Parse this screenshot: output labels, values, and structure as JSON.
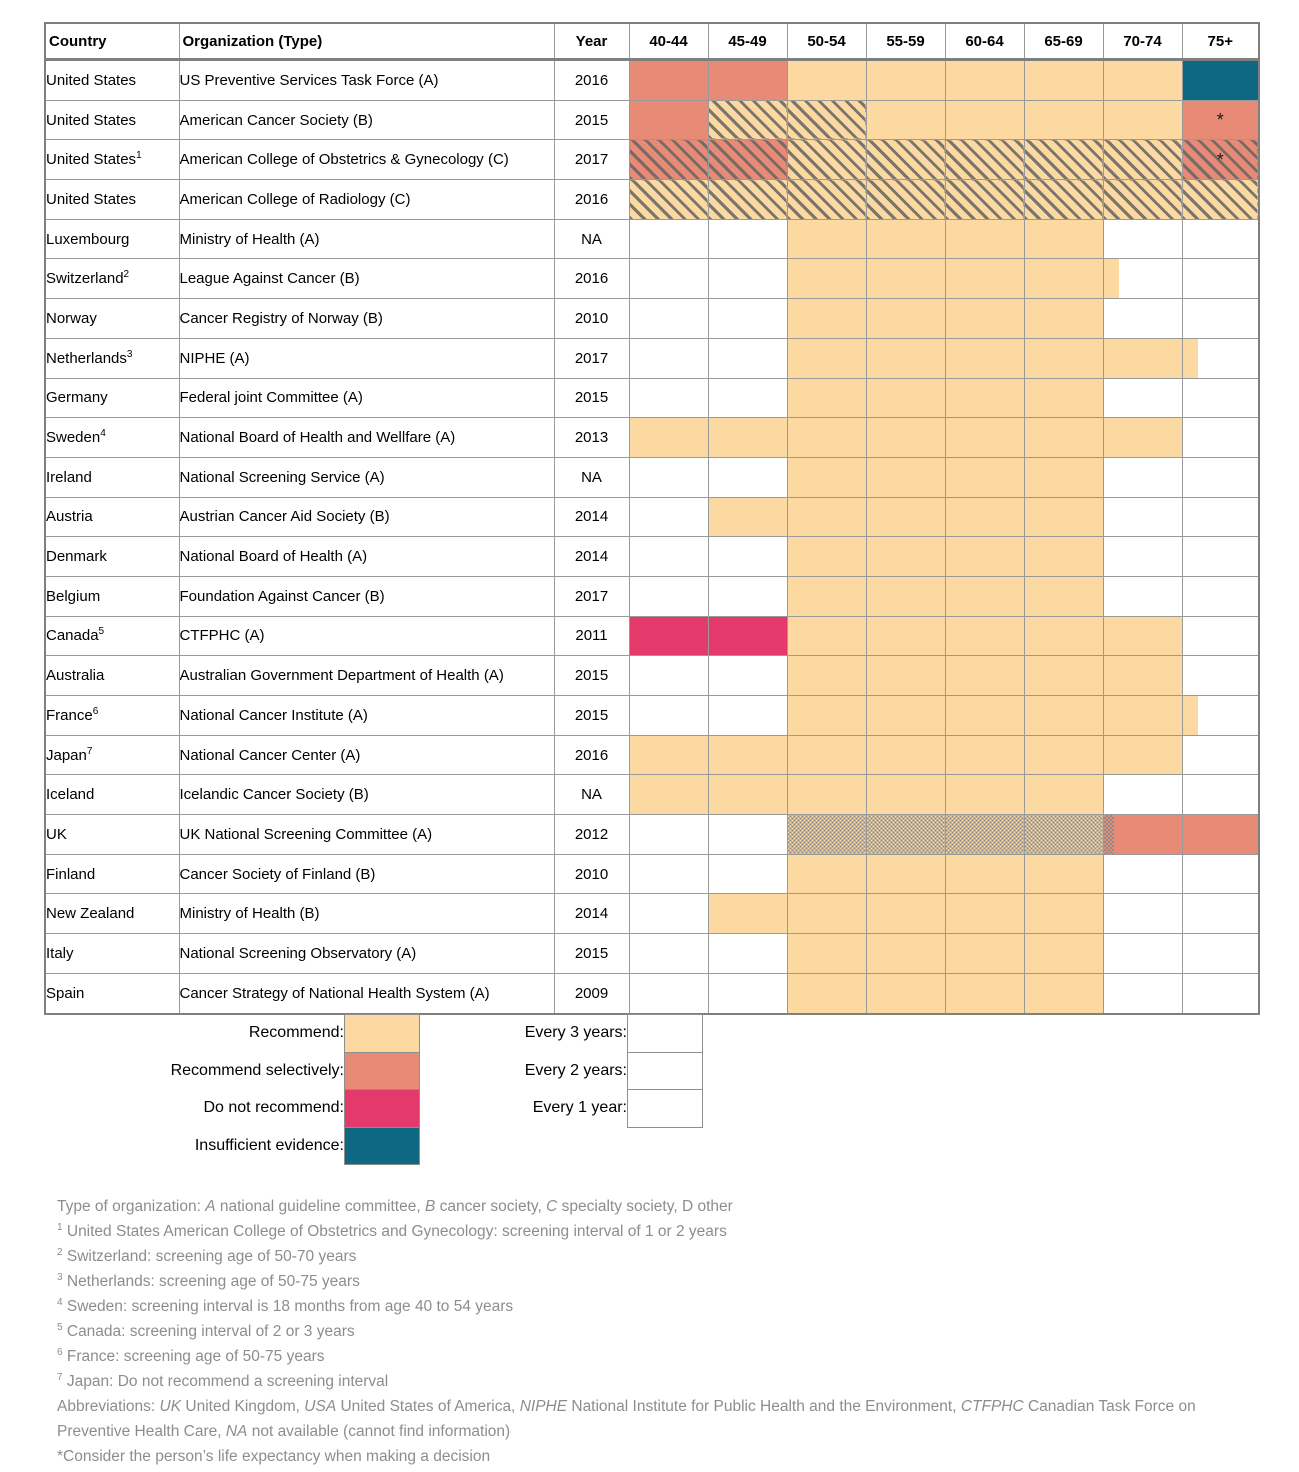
{
  "chart_data": {
    "type": "heatmap",
    "columns": [
      "Country",
      "Organization (Type)",
      "Year",
      "40-44",
      "45-49",
      "50-54",
      "55-59",
      "60-64",
      "65-69",
      "70-74",
      "75+"
    ],
    "age_groups": [
      "40-44",
      "45-49",
      "50-54",
      "55-59",
      "60-64",
      "65-69",
      "70-74",
      "75+"
    ],
    "cell_codes": {
      "R": "Recommend",
      "S": "Recommend selectively",
      "D": "Do not recommend",
      "I": "Insufficient evidence",
      "p1": "Every 1 year",
      "p2": "Every 2 years",
      "p3": "Every 3 years"
    },
    "rows": [
      {
        "country": "United States",
        "organization": "US Preventive Services Task Force (A)",
        "year": "2016",
        "cells": [
          {
            "c": "S"
          },
          {
            "c": "S"
          },
          {
            "c": "R"
          },
          {
            "c": "R"
          },
          {
            "c": "R"
          },
          {
            "c": "R"
          },
          {
            "c": "R"
          },
          {
            "c": "I"
          }
        ]
      },
      {
        "country": "United States",
        "organization": "American Cancer Society (B)",
        "year": "2015",
        "cells": [
          {
            "c": "S"
          },
          {
            "c": "R",
            "p": "1"
          },
          {
            "c": "R",
            "p": "1"
          },
          {
            "c": "R"
          },
          {
            "c": "R"
          },
          {
            "c": "R"
          },
          {
            "c": "R"
          },
          {
            "c": "S",
            "m": "*"
          }
        ]
      },
      {
        "country": "United States",
        "csup": "1",
        "organization": "American College of Obstetrics & Gynecology (C)",
        "year": "2017",
        "cells": [
          {
            "c": "S",
            "p": "1"
          },
          {
            "c": "S",
            "p": "1"
          },
          {
            "c": "R",
            "p": "1"
          },
          {
            "c": "R",
            "p": "1"
          },
          {
            "c": "R",
            "p": "1"
          },
          {
            "c": "R",
            "p": "1"
          },
          {
            "c": "R",
            "p": "1"
          },
          {
            "c": "S",
            "p": "1",
            "m": "*"
          }
        ]
      },
      {
        "country": "United States",
        "organization": "American College of Radiology (C)",
        "year": "2016",
        "cells": [
          {
            "c": "R",
            "p": "1"
          },
          {
            "c": "R",
            "p": "1"
          },
          {
            "c": "R",
            "p": "1"
          },
          {
            "c": "R",
            "p": "1"
          },
          {
            "c": "R",
            "p": "1"
          },
          {
            "c": "R",
            "p": "1"
          },
          {
            "c": "R",
            "p": "1"
          },
          {
            "c": "R",
            "p": "1"
          }
        ]
      },
      {
        "country": "Luxembourg",
        "organization": "Ministry of Health (A)",
        "year": "NA",
        "cells": [
          {},
          {},
          {
            "c": "R"
          },
          {
            "c": "R"
          },
          {
            "c": "R"
          },
          {
            "c": "R"
          },
          {},
          {}
        ]
      },
      {
        "country": "Switzerland",
        "csup": "2",
        "organization": "League Against Cancer (B)",
        "year": "2016",
        "cells": [
          {},
          {},
          {
            "c": "R"
          },
          {
            "c": "R"
          },
          {
            "c": "R"
          },
          {
            "c": "R"
          },
          {
            "pc": "R",
            "pw": 20
          },
          {}
        ]
      },
      {
        "country": "Norway",
        "organization": "Cancer Registry of Norway (B)",
        "year": "2010",
        "cells": [
          {},
          {},
          {
            "c": "R"
          },
          {
            "c": "R"
          },
          {
            "c": "R"
          },
          {
            "c": "R"
          },
          {},
          {}
        ]
      },
      {
        "country": "Netherlands",
        "csup": "3",
        "organization": "NIPHE (A)",
        "year": "2017",
        "cells": [
          {},
          {},
          {
            "c": "R"
          },
          {
            "c": "R"
          },
          {
            "c": "R"
          },
          {
            "c": "R"
          },
          {
            "c": "R"
          },
          {
            "pc": "R",
            "pw": 20
          }
        ]
      },
      {
        "country": "Germany",
        "organization": "Federal joint Committee (A)",
        "year": "2015",
        "cells": [
          {},
          {},
          {
            "c": "R"
          },
          {
            "c": "R"
          },
          {
            "c": "R"
          },
          {
            "c": "R"
          },
          {},
          {}
        ]
      },
      {
        "country": "Sweden",
        "csup": "4",
        "organization": "National Board of Health and Wellfare (A)",
        "year": "2013",
        "cells": [
          {
            "c": "R"
          },
          {
            "c": "R"
          },
          {
            "c": "R"
          },
          {
            "c": "R"
          },
          {
            "c": "R"
          },
          {
            "c": "R"
          },
          {
            "c": "R"
          },
          {}
        ]
      },
      {
        "country": "Ireland",
        "organization": "National Screening Service (A)",
        "year": "NA",
        "cells": [
          {},
          {},
          {
            "c": "R"
          },
          {
            "c": "R"
          },
          {
            "c": "R"
          },
          {
            "c": "R"
          },
          {},
          {}
        ]
      },
      {
        "country": "Austria",
        "organization": "Austrian Cancer Aid Society (B)",
        "year": "2014",
        "cells": [
          {},
          {
            "c": "R"
          },
          {
            "c": "R"
          },
          {
            "c": "R"
          },
          {
            "c": "R"
          },
          {
            "c": "R"
          },
          {},
          {}
        ]
      },
      {
        "country": "Denmark",
        "organization": "National Board of Health (A)",
        "year": "2014",
        "cells": [
          {},
          {},
          {
            "c": "R"
          },
          {
            "c": "R"
          },
          {
            "c": "R"
          },
          {
            "c": "R"
          },
          {},
          {}
        ]
      },
      {
        "country": "Belgium",
        "organization": "Foundation Against Cancer (B)",
        "year": "2017",
        "cells": [
          {},
          {},
          {
            "c": "R"
          },
          {
            "c": "R"
          },
          {
            "c": "R"
          },
          {
            "c": "R"
          },
          {},
          {}
        ]
      },
      {
        "country": "Canada",
        "csup": "5",
        "organization": "CTFPHC (A)",
        "year": "2011",
        "cells": [
          {
            "c": "D"
          },
          {
            "c": "D"
          },
          {
            "c": "R"
          },
          {
            "c": "R"
          },
          {
            "c": "R"
          },
          {
            "c": "R"
          },
          {
            "c": "R"
          },
          {}
        ]
      },
      {
        "country": "Australia",
        "organization": "Australian Government Department of Health (A)",
        "year": "2015",
        "cells": [
          {},
          {},
          {
            "c": "R"
          },
          {
            "c": "R"
          },
          {
            "c": "R"
          },
          {
            "c": "R"
          },
          {
            "c": "R"
          },
          {}
        ]
      },
      {
        "country": "France",
        "csup": "6",
        "organization": "National Cancer Institute (A)",
        "year": "2015",
        "cells": [
          {},
          {},
          {
            "c": "R"
          },
          {
            "c": "R"
          },
          {
            "c": "R"
          },
          {
            "c": "R"
          },
          {
            "c": "R"
          },
          {
            "pc": "R",
            "pw": 20
          }
        ]
      },
      {
        "country": "Japan",
        "csup": "7",
        "organization": "National Cancer Center (A)",
        "year": "2016",
        "cells": [
          {
            "c": "R"
          },
          {
            "c": "R"
          },
          {
            "c": "R"
          },
          {
            "c": "R"
          },
          {
            "c": "R"
          },
          {
            "c": "R"
          },
          {
            "c": "R"
          },
          {}
        ]
      },
      {
        "country": "Iceland",
        "organization": "Icelandic Cancer Society (B)",
        "year": "NA",
        "cells": [
          {
            "c": "R"
          },
          {
            "c": "R"
          },
          {
            "c": "R"
          },
          {
            "c": "R"
          },
          {
            "c": "R"
          },
          {
            "c": "R"
          },
          {},
          {}
        ]
      },
      {
        "country": "UK",
        "organization": "UK National Screening Committee (A)",
        "year": "2012",
        "cells": [
          {},
          {},
          {
            "c": "R",
            "p": "3"
          },
          {
            "c": "R",
            "p": "3"
          },
          {
            "c": "R",
            "p": "3"
          },
          {
            "c": "R",
            "p": "3"
          },
          {
            "c": "S",
            "pc": "S",
            "pp": "3",
            "pw": 14
          },
          {
            "c": "S"
          }
        ]
      },
      {
        "country": "Finland",
        "organization": "Cancer Society of Finland (B)",
        "year": "2010",
        "cells": [
          {},
          {},
          {
            "c": "R"
          },
          {
            "c": "R"
          },
          {
            "c": "R"
          },
          {
            "c": "R"
          },
          {},
          {}
        ]
      },
      {
        "country": "New Zealand",
        "organization": "Ministry of Health (B)",
        "year": "2014",
        "cells": [
          {},
          {
            "c": "R"
          },
          {
            "c": "R"
          },
          {
            "c": "R"
          },
          {
            "c": "R"
          },
          {
            "c": "R"
          },
          {},
          {}
        ]
      },
      {
        "country": "Italy",
        "organization": "National Screening Observatory (A)",
        "year": "2015",
        "cells": [
          {},
          {},
          {
            "c": "R"
          },
          {
            "c": "R"
          },
          {
            "c": "R"
          },
          {
            "c": "R"
          },
          {},
          {}
        ]
      },
      {
        "country": "Spain",
        "organization": "Cancer Strategy of National Health System (A)",
        "year": "2009",
        "cells": [
          {},
          {},
          {
            "c": "R"
          },
          {
            "c": "R"
          },
          {
            "c": "R"
          },
          {
            "c": "R"
          },
          {},
          {}
        ]
      }
    ],
    "legend": {
      "colors": [
        {
          "code": "R",
          "label": "Recommend:",
          "hex": "#FBD9A1"
        },
        {
          "code": "S",
          "label": "Recommend selectively:",
          "hex": "#E88B76"
        },
        {
          "code": "D",
          "label": "Do not recommend:",
          "hex": "#E3396B"
        },
        {
          "code": "I",
          "label": "Insufficient evidence:",
          "hex": "#0E6883"
        }
      ],
      "patterns": [
        {
          "code": "3",
          "label": "Every 3 years:"
        },
        {
          "code": "2",
          "label": "Every 2 years:"
        },
        {
          "code": "1",
          "label": "Every 1 year:"
        }
      ]
    },
    "footnotes": [
      [
        {
          "t": "Type of organization: "
        },
        {
          "t": "A",
          "i": true
        },
        {
          "t": " national guideline committee, "
        },
        {
          "t": "B",
          "i": true
        },
        {
          "t": " cancer society, "
        },
        {
          "t": "C",
          "i": true
        },
        {
          "t": " specialty society, D other"
        }
      ],
      [
        {
          "t": "1",
          "sup": true
        },
        {
          "t": " United States American College of Obstetrics and Gynecology: screening interval of 1 or 2 years"
        }
      ],
      [
        {
          "t": "2",
          "sup": true
        },
        {
          "t": " Switzerland: screening age of 50-70 years"
        }
      ],
      [
        {
          "t": "3",
          "sup": true
        },
        {
          "t": " Netherlands: screening age of 50-75 years"
        }
      ],
      [
        {
          "t": "4",
          "sup": true
        },
        {
          "t": " Sweden: screening interval is 18 months from age 40 to 54 years"
        }
      ],
      [
        {
          "t": "5",
          "sup": true
        },
        {
          "t": " Canada: screening interval of 2 or 3 years"
        }
      ],
      [
        {
          "t": "6",
          "sup": true
        },
        {
          "t": " France: screening age of 50-75 years"
        }
      ],
      [
        {
          "t": "7",
          "sup": true
        },
        {
          "t": " Japan: Do not recommend a screening interval"
        }
      ],
      [
        {
          "t": "Abbreviations: "
        },
        {
          "t": "UK",
          "i": true
        },
        {
          "t": " United Kingdom, "
        },
        {
          "t": "USA",
          "i": true
        },
        {
          "t": " United States of America, "
        },
        {
          "t": "NIPHE",
          "i": true
        },
        {
          "t": " National Institute for Public Health and the Environment, "
        },
        {
          "t": "CTFPHC",
          "i": true
        },
        {
          "t": " Canadian Task Force on Preventive Health Care, "
        },
        {
          "t": "NA",
          "i": true
        },
        {
          "t": " not available (cannot find information)"
        }
      ],
      [
        {
          "t": "*Consider the person’s life expectancy when making a decision"
        }
      ]
    ]
  }
}
